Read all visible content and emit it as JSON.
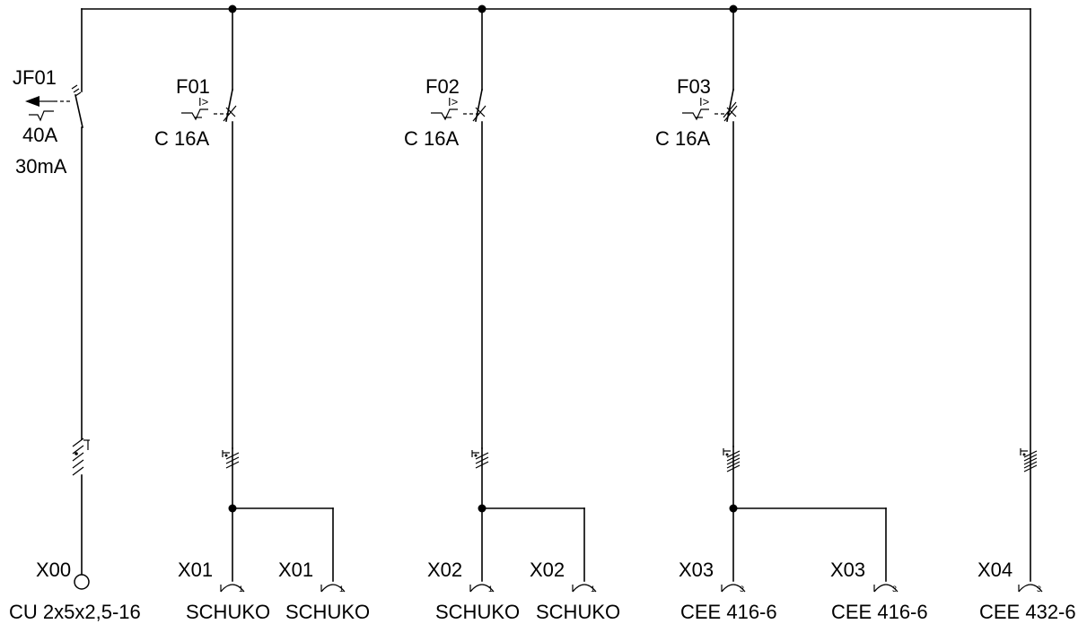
{
  "main_breaker": {
    "id": "JF01",
    "rating": "40A",
    "residual_current": "30mA"
  },
  "breakers": [
    {
      "id": "F01",
      "marker": "I>",
      "rating": "C 16A"
    },
    {
      "id": "F02",
      "marker": "I>",
      "rating": "C 16A"
    },
    {
      "id": "F03",
      "marker": "I>",
      "rating": "C 16A"
    }
  ],
  "feed_terminal": {
    "id": "X00",
    "cable": "CU 2x5x2,5-16"
  },
  "sockets": [
    {
      "id": "X01",
      "type": "SCHUKO",
      "pin": "1"
    },
    {
      "id": "X01",
      "type": "SCHUKO",
      "pin": "1"
    },
    {
      "id": "X02",
      "type": "SCHUKO",
      "pin": "1"
    },
    {
      "id": "X02",
      "type": "SCHUKO",
      "pin": "1"
    },
    {
      "id": "X03",
      "type": "CEE 416-6",
      "pin": "3"
    },
    {
      "id": "X03",
      "type": "CEE 416-6",
      "pin": "3"
    },
    {
      "id": "X04",
      "type": "CEE 432-6",
      "pin": "3"
    }
  ]
}
